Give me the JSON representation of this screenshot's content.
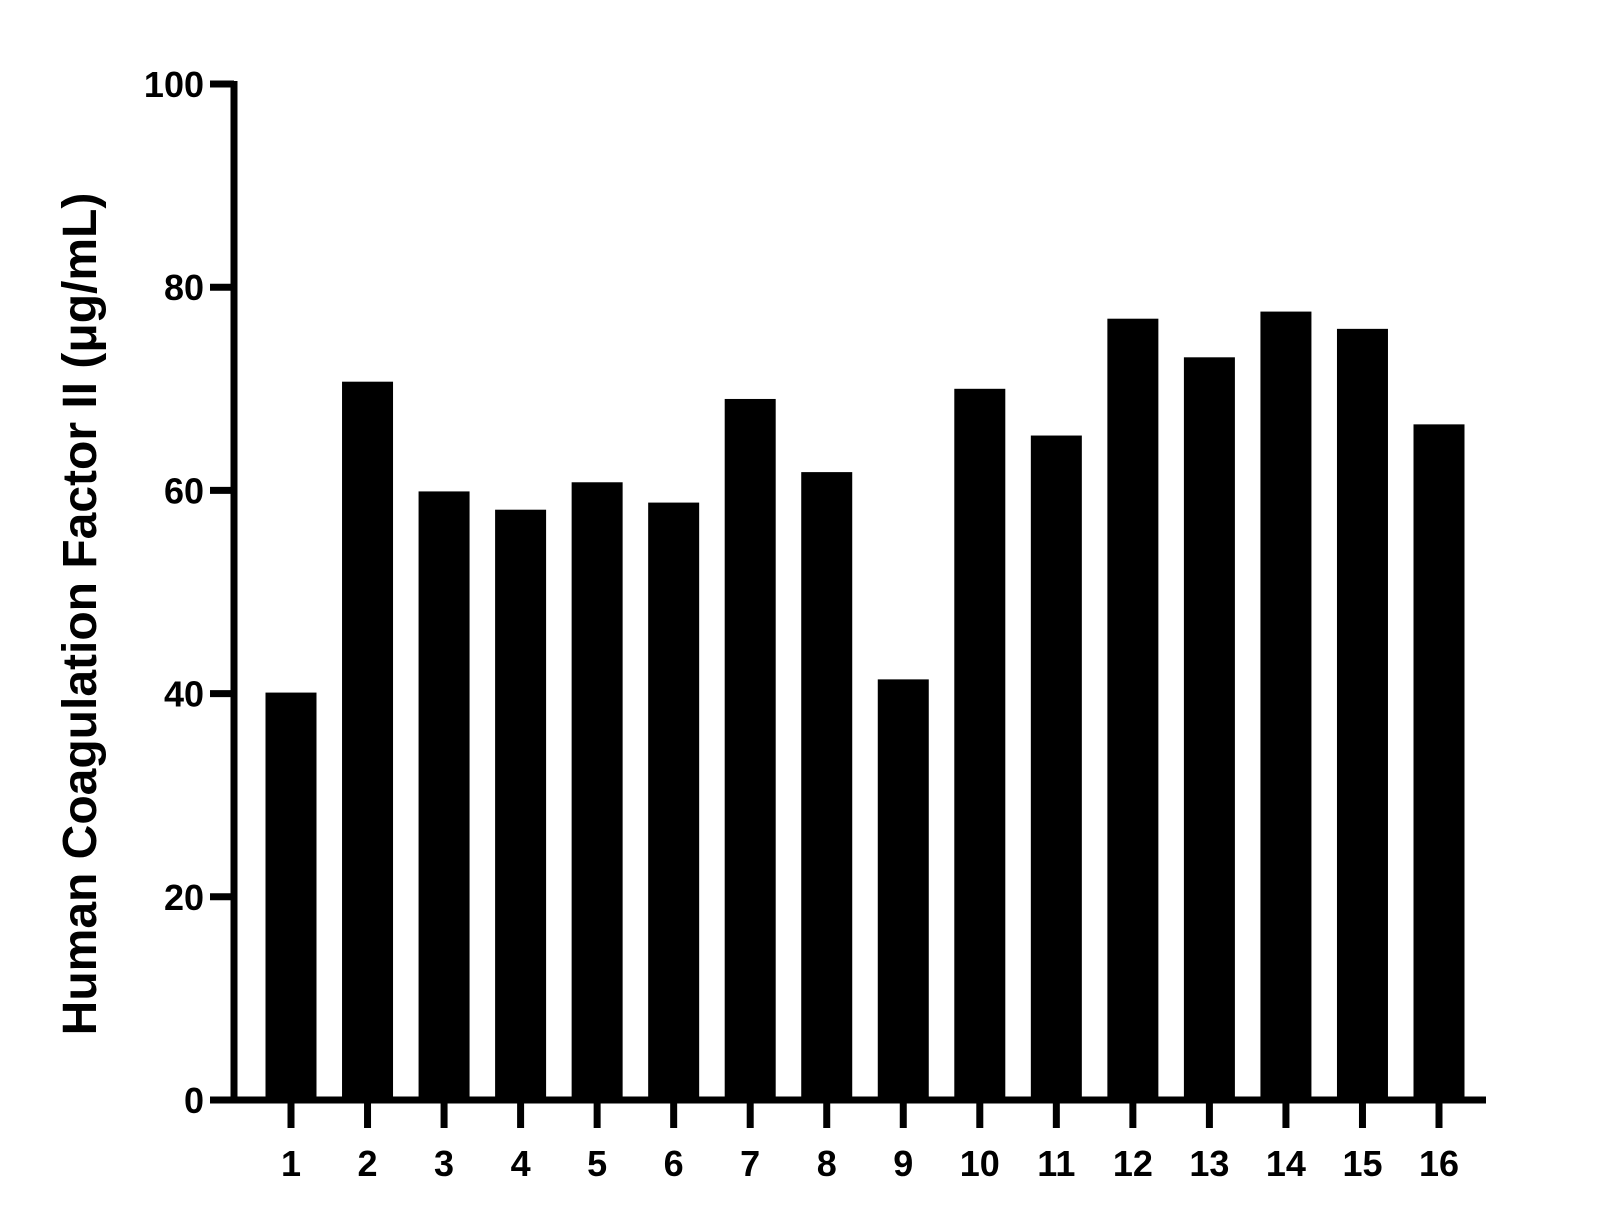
{
  "chart_data": {
    "type": "bar",
    "categories": [
      "1",
      "2",
      "3",
      "4",
      "5",
      "6",
      "7",
      "8",
      "9",
      "10",
      "11",
      "12",
      "13",
      "14",
      "15",
      "16"
    ],
    "values": [
      40.1,
      70.7,
      59.9,
      58.1,
      60.8,
      58.8,
      69.0,
      61.8,
      41.4,
      70.0,
      65.4,
      76.9,
      73.1,
      77.6,
      75.9,
      66.5
    ],
    "title": "",
    "xlabel": "",
    "ylabel": "Human Coagulation Factor II (μg/mL)",
    "ylim": [
      0,
      100
    ],
    "yticks": [
      0,
      20,
      40,
      60,
      80,
      100
    ],
    "grid": false,
    "bar_color": "#000000"
  }
}
